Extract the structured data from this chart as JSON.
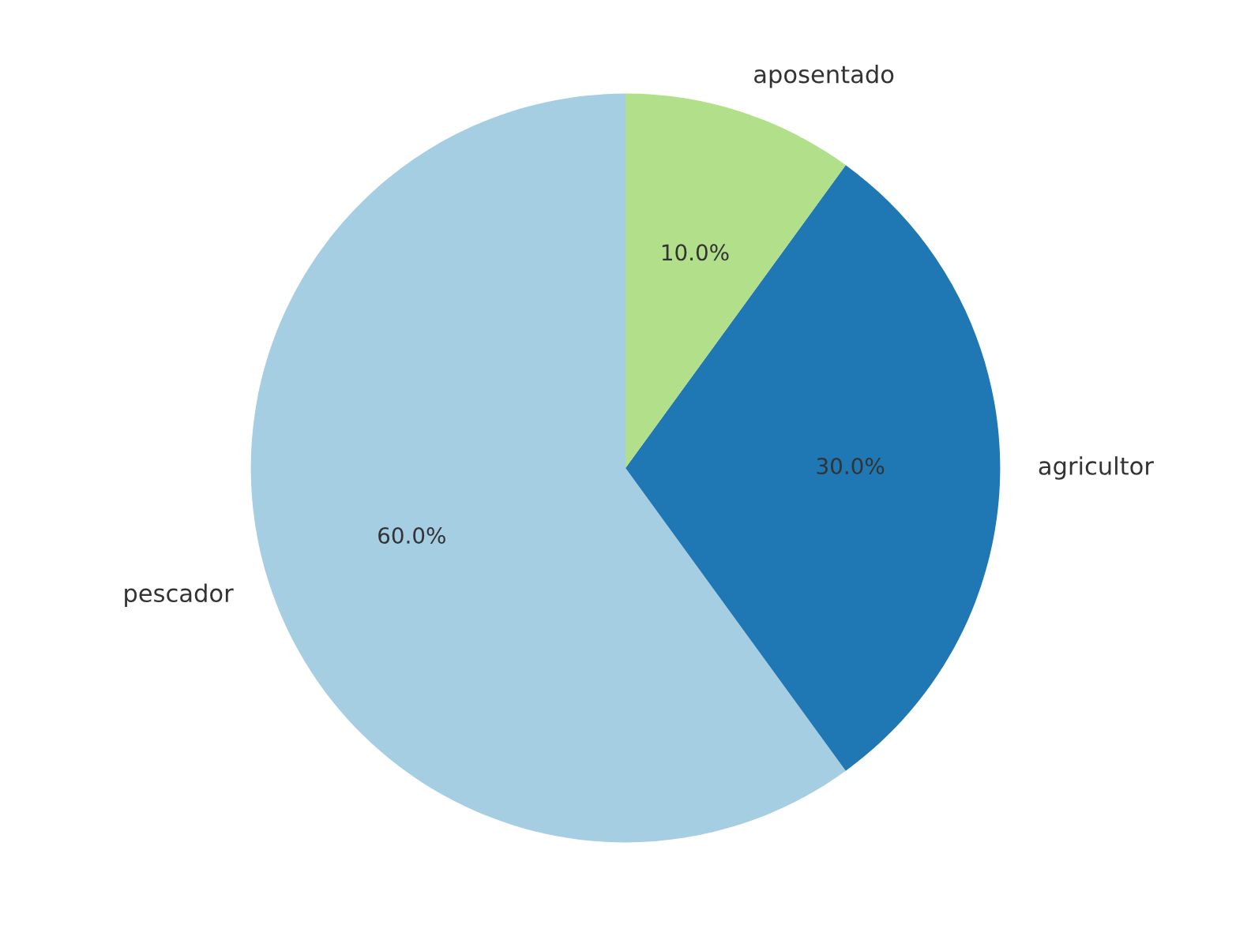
{
  "chart_data": {
    "type": "pie",
    "categories": [
      "pescador",
      "agricultor",
      "aposentado"
    ],
    "values": [
      60,
      30,
      10
    ],
    "colors": [
      "#a6cee3",
      "#1f78b4",
      "#b2df8a"
    ],
    "value_labels": [
      "60.0%",
      "30.0%",
      "10.0%"
    ]
  }
}
